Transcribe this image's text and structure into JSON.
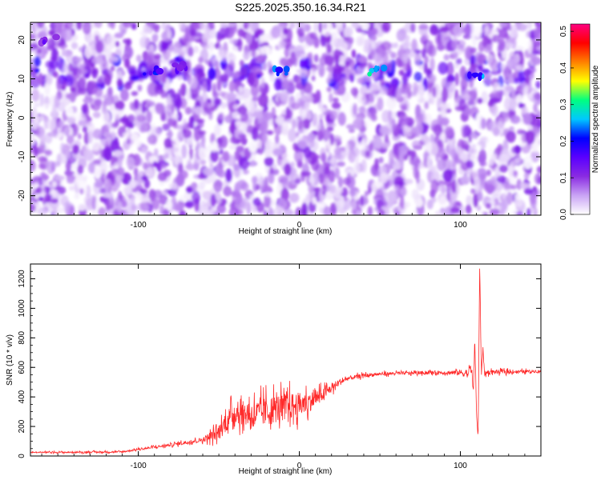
{
  "title": "S225.2025.350.16.34.R21",
  "chart_data": [
    {
      "type": "heatmap",
      "xlabel": "Height of straight line (km)",
      "ylabel": "Frequency (Hz)",
      "xlim": [
        -167,
        150
      ],
      "ylim": [
        -25,
        24.5
      ],
      "x_ticks": [
        "-100",
        "0",
        "100"
      ],
      "y_ticks": [
        "20",
        "10",
        "0",
        "-10",
        "-20"
      ],
      "colorbar": {
        "label": "Normalized spectral amplitude",
        "range": [
          0.0,
          0.52
        ],
        "ticks": [
          "0.0",
          "0.1",
          "0.2",
          "0.3",
          "0.4",
          "0.5"
        ],
        "colors": [
          "#ffffff",
          "#c9a3f5",
          "#8a2be2",
          "#5a00ff",
          "#0000ff",
          "#00c8ff",
          "#00ff80",
          "#ffff00",
          "#ff8000",
          "#ff0000",
          "#ff0080"
        ]
      },
      "band_frequency_hz": 11.5,
      "hot_spots": [
        {
          "x": -92,
          "y": 12,
          "value": 0.22
        },
        {
          "x": -72,
          "y": 13,
          "value": 0.18
        },
        {
          "x": -12,
          "y": 12,
          "value": 0.27
        },
        {
          "x": 48,
          "y": 12,
          "value": 0.33
        },
        {
          "x": 110,
          "y": 11,
          "value": 0.28
        },
        {
          "x": -156,
          "y": 20,
          "value": 0.15
        }
      ]
    },
    {
      "type": "line",
      "xlabel": "Height of straight line (km)",
      "ylabel": "SNR (10 * v/v)",
      "xlim": [
        -167,
        150
      ],
      "ylim": [
        0,
        1300
      ],
      "x_ticks": [
        "-100",
        "0",
        "100"
      ],
      "y_ticks": [
        "0",
        "200",
        "400",
        "600",
        "800",
        "1000",
        "1200"
      ],
      "color": "#ff2a2a",
      "series": [
        {
          "points": [
            [
              -167,
              25
            ],
            [
              -140,
              25
            ],
            [
              -110,
              28
            ],
            [
              -100,
              45
            ],
            [
              -80,
              75
            ],
            [
              -60,
              110
            ],
            [
              -50,
              160
            ],
            [
              -45,
              240
            ],
            [
              -40,
              300
            ],
            [
              -35,
              290
            ],
            [
              -30,
              280
            ],
            [
              -25,
              290
            ],
            [
              -20,
              300
            ],
            [
              -15,
              320
            ],
            [
              -10,
              330
            ],
            [
              -5,
              340
            ],
            [
              0,
              345
            ],
            [
              5,
              360
            ],
            [
              10,
              390
            ],
            [
              15,
              420
            ],
            [
              20,
              460
            ],
            [
              25,
              500
            ],
            [
              30,
              525
            ],
            [
              40,
              545
            ],
            [
              50,
              555
            ],
            [
              60,
              560
            ],
            [
              70,
              562
            ],
            [
              80,
              565
            ],
            [
              90,
              565
            ],
            [
              100,
              565
            ],
            [
              105,
              560
            ],
            [
              107,
              600
            ],
            [
              108,
              420
            ],
            [
              109,
              780
            ],
            [
              110,
              300
            ],
            [
              111,
              100
            ],
            [
              112,
              1300
            ],
            [
              113,
              560
            ],
            [
              114,
              720
            ],
            [
              115,
              560
            ],
            [
              120,
              570
            ],
            [
              130,
              570
            ],
            [
              140,
              572
            ],
            [
              150,
              575
            ]
          ],
          "noise_amplitude": [
            [
              -167,
              8
            ],
            [
              -100,
              12
            ],
            [
              -60,
              30
            ],
            [
              -45,
              140
            ],
            [
              -20,
              200
            ],
            [
              0,
              170
            ],
            [
              15,
              80
            ],
            [
              30,
              30
            ],
            [
              60,
              20
            ],
            [
              90,
              25
            ],
            [
              100,
              40
            ],
            [
              105,
              60
            ],
            [
              116,
              30
            ],
            [
              150,
              18
            ]
          ]
        }
      ]
    }
  ]
}
